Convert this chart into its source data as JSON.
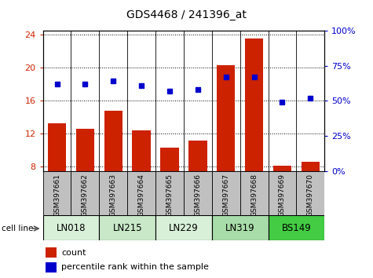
{
  "title": "GDS4468 / 241396_at",
  "samples": [
    "GSM397661",
    "GSM397662",
    "GSM397663",
    "GSM397664",
    "GSM397665",
    "GSM397666",
    "GSM397667",
    "GSM397668",
    "GSM397669",
    "GSM397670"
  ],
  "counts": [
    13.3,
    12.6,
    14.8,
    12.4,
    10.3,
    11.2,
    20.3,
    23.5,
    8.1,
    8.6
  ],
  "percentile": [
    62,
    62,
    64,
    61,
    57,
    58,
    67,
    67,
    49,
    52
  ],
  "cell_lines": [
    {
      "label": "LN018",
      "start": 0,
      "end": 2,
      "color": "#d8f0d8"
    },
    {
      "label": "LN215",
      "start": 2,
      "end": 4,
      "color": "#c8e8c8"
    },
    {
      "label": "LN229",
      "start": 4,
      "end": 6,
      "color": "#d8f0d8"
    },
    {
      "label": "LN319",
      "start": 6,
      "end": 8,
      "color": "#a8dca8"
    },
    {
      "label": "BS149",
      "start": 8,
      "end": 10,
      "color": "#44cc44"
    }
  ],
  "ylim_left": [
    7.5,
    24.5
  ],
  "ylim_right": [
    0,
    100
  ],
  "yticks_left": [
    8,
    12,
    16,
    20,
    24
  ],
  "yticks_right": [
    0,
    25,
    50,
    75,
    100
  ],
  "bar_color": "#cc2200",
  "dot_color": "#0000cc",
  "sample_bg_color": "#c0c0c0",
  "gridline_color": "#000000",
  "left_label_color": "#cc2200",
  "right_label_color": "#0000cc"
}
